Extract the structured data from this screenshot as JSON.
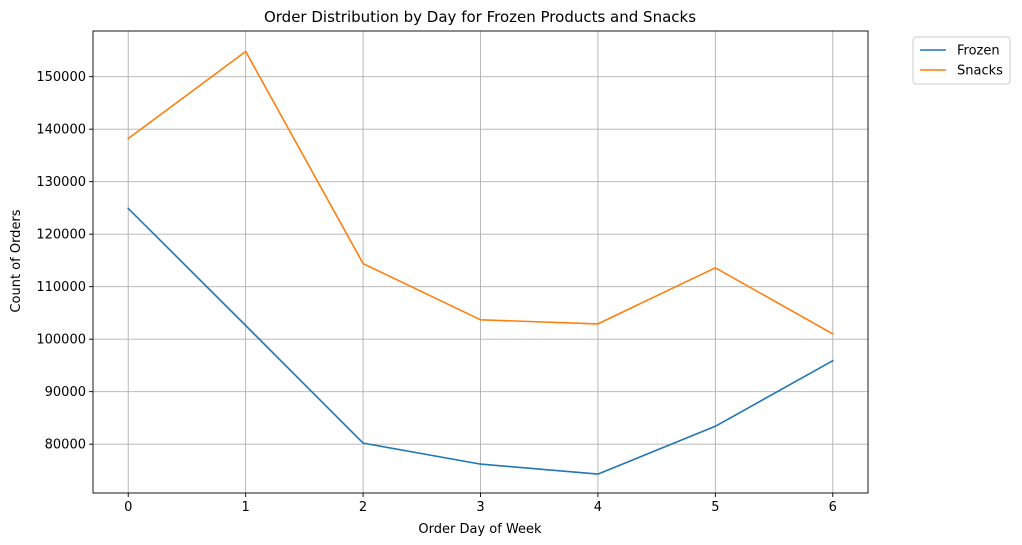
{
  "chart_data": {
    "type": "line",
    "title": "Order Distribution by Day for Frozen Products and Snacks",
    "xlabel": "Order Day of Week",
    "ylabel": "Count of Orders",
    "x": [
      0,
      1,
      2,
      3,
      4,
      5,
      6
    ],
    "xticks": [
      "0",
      "1",
      "2",
      "3",
      "4",
      "5",
      "6"
    ],
    "yticks": [
      80000,
      90000,
      100000,
      110000,
      120000,
      130000,
      140000,
      150000
    ],
    "xlim": [
      -0.3,
      6.3
    ],
    "ylim": [
      70700,
      158700
    ],
    "grid": true,
    "legend_position": "outside-top-right",
    "series": [
      {
        "name": "Frozen",
        "color": "#1f77b4",
        "values": [
          124900,
          102600,
          80200,
          76200,
          74300,
          83400,
          95900
        ]
      },
      {
        "name": "Snacks",
        "color": "#ff7f0e",
        "values": [
          138200,
          154800,
          114400,
          103700,
          102900,
          113600,
          101000
        ]
      }
    ]
  }
}
